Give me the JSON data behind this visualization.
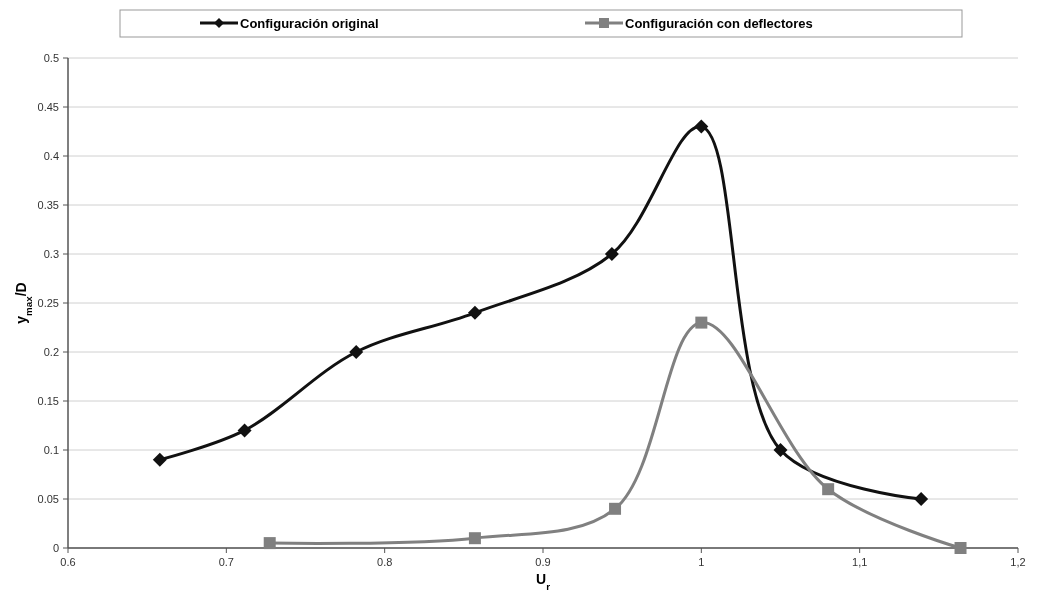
{
  "chart_data": {
    "type": "line",
    "xlabel": "U$_{r}$",
    "ylabel": "y$_{max}$/D",
    "xlim": [
      0.6,
      1.2
    ],
    "xticks": [
      0.6,
      0.7,
      0.8,
      0.9,
      1,
      {
        "value": 1.1,
        "label": "1,1"
      },
      {
        "value": 1.2,
        "label": "1,2"
      }
    ],
    "ylim": [
      0,
      0.5
    ],
    "yticks": [
      0,
      0.05,
      0.1,
      0.15,
      0.2,
      0.25,
      0.3,
      0.35,
      0.4,
      0.45,
      0.5
    ],
    "grid": "y",
    "legend": "top",
    "series": [
      {
        "name": "Configuración original",
        "color": "#111111",
        "marker": "diamond",
        "x": [
          0.658,
          0.7115,
          0.782,
          0.857,
          0.9435,
          1.0,
          1.05,
          1.1388
        ],
        "values": [
          0.09,
          0.12,
          0.2,
          0.24,
          0.3,
          0.43,
          0.1,
          0.05
        ]
      },
      {
        "name": "Configuración con deflectores",
        "color": "#808080",
        "marker": "square",
        "x": [
          0.7274,
          0.857,
          0.9455,
          1.0,
          1.0801,
          1.1637
        ],
        "values": [
          0.005,
          0.01,
          0.04,
          0.23,
          0.06,
          0
        ]
      }
    ]
  }
}
